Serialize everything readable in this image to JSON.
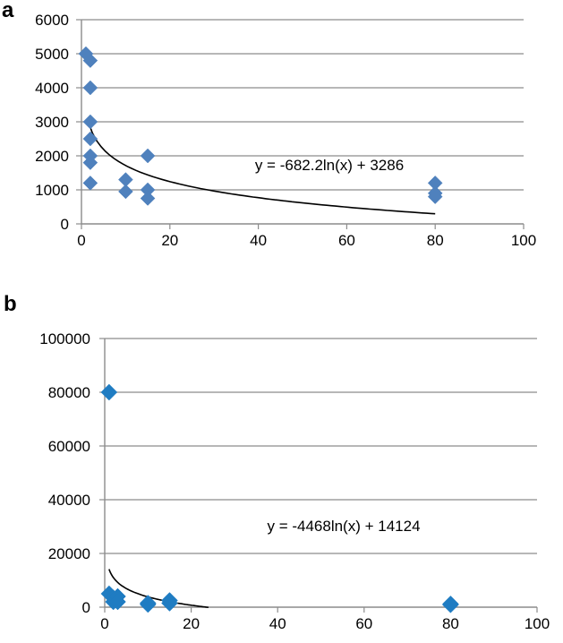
{
  "panels": {
    "a": {
      "label": "a"
    },
    "b": {
      "label": "b"
    }
  },
  "colors": {
    "a_marker": "#4f81bd",
    "b_marker": "#1f7cc2",
    "grid": "#8c8c8c",
    "axis": "#8c8c8c",
    "trendline": "#000000",
    "text": "#000000"
  },
  "chart_data": [
    {
      "panel": "a",
      "type": "scatter",
      "title": "",
      "xlabel": "",
      "ylabel": "",
      "xlim": [
        0,
        100
      ],
      "ylim": [
        0,
        6000
      ],
      "xticks": [
        0,
        20,
        40,
        60,
        80,
        100
      ],
      "yticks": [
        0,
        1000,
        2000,
        3000,
        4000,
        5000,
        6000
      ],
      "grid": "horizontal",
      "marker": "diamond",
      "series": [
        {
          "points": [
            [
              1,
              5000
            ],
            [
              2,
              4800
            ],
            [
              2,
              4000
            ],
            [
              2,
              3000
            ],
            [
              2,
              2500
            ],
            [
              2,
              2000
            ],
            [
              2,
              1800
            ],
            [
              2,
              1200
            ],
            [
              10,
              1300
            ],
            [
              10,
              950
            ],
            [
              15,
              2000
            ],
            [
              15,
              1000
            ],
            [
              15,
              750
            ],
            [
              80,
              1200
            ],
            [
              80,
              900
            ],
            [
              80,
              800
            ]
          ]
        }
      ],
      "trendline": {
        "type": "logarithmic",
        "a": -682.2,
        "b": 3286,
        "xrange": [
          1.5,
          80
        ],
        "equation": "y = -682.2ln(x) + 3286"
      }
    },
    {
      "panel": "b",
      "type": "scatter",
      "title": "",
      "xlabel": "",
      "ylabel": "",
      "xlim": [
        0,
        100
      ],
      "ylim": [
        0,
        100000
      ],
      "xticks": [
        0,
        20,
        40,
        60,
        80,
        100
      ],
      "yticks": [
        0,
        20000,
        40000,
        60000,
        80000,
        100000
      ],
      "grid": "horizontal",
      "marker": "diamond",
      "series": [
        {
          "points": [
            [
              1,
              80000
            ],
            [
              1,
              5000
            ],
            [
              2,
              3500
            ],
            [
              2,
              2000
            ],
            [
              3,
              4000
            ],
            [
              3,
              2000
            ],
            [
              10,
              1500
            ],
            [
              10,
              1000
            ],
            [
              15,
              2500
            ],
            [
              15,
              1500
            ],
            [
              80,
              1200
            ],
            [
              80,
              900
            ]
          ]
        }
      ],
      "trendline": {
        "type": "logarithmic",
        "a": -4468,
        "b": 14124,
        "xrange": [
          1,
          24
        ],
        "equation": "y = -4468ln(x) + 14124"
      }
    }
  ]
}
